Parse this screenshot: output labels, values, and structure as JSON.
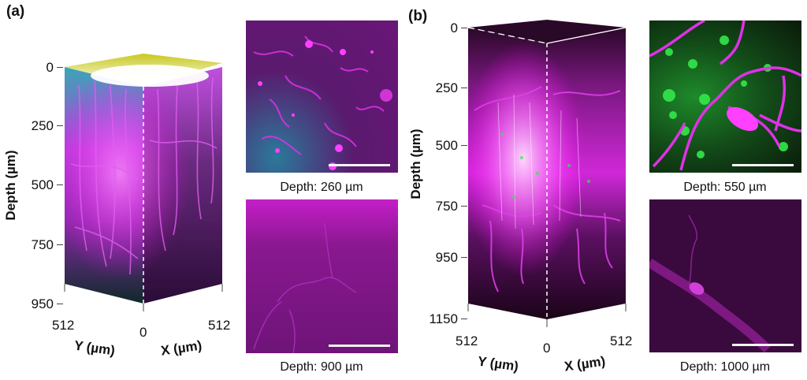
{
  "panels": [
    {
      "label": "(a)",
      "ylabel": "Depth (µm)",
      "yticks": [
        "0",
        "250",
        "500",
        "750",
        "950"
      ],
      "xticks": [
        "512",
        "0",
        "512"
      ],
      "ylabel_axis_y": "Y (µm)",
      "xlabel_axis_x": "X (µm)",
      "images": [
        {
          "caption": "Depth: 260 µm"
        },
        {
          "caption": "Depth: 900 µm"
        }
      ]
    },
    {
      "label": "(b)",
      "ylabel": "Depth (µm)",
      "yticks": [
        "0",
        "250",
        "500",
        "750",
        "950",
        "1150"
      ],
      "xticks": [
        "512",
        "0",
        "512"
      ],
      "ylabel_axis_y": "Y (µm)",
      "xlabel_axis_x": "X (µm)",
      "images": [
        {
          "caption": "Depth: 550 µm"
        },
        {
          "caption": "Depth: 1000 µm"
        }
      ]
    }
  ],
  "colors": {
    "magenta": "#e21ee6",
    "green": "#33e84a",
    "cyan": "#2ab8c8",
    "yellow": "#e6e61e"
  }
}
